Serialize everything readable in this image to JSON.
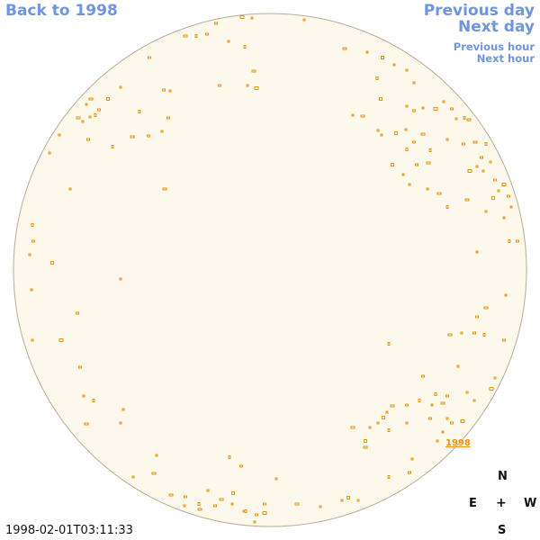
{
  "nav": {
    "back_label": "Back to 1998",
    "prev_day_label": "Previous day",
    "next_day_label": "Next day",
    "prev_hour_label": "Previous hour",
    "next_hour_label": "Next hour"
  },
  "disk": {
    "fill_color": "#fdf8ec",
    "edge_color": "#b9ad96",
    "feature_color": "#e8940e"
  },
  "region_label": "1998",
  "compass": {
    "north": "N",
    "east": "E",
    "center": "+",
    "west": "W",
    "south": "S"
  },
  "timestamp": "1998-02-01T03:11:33"
}
